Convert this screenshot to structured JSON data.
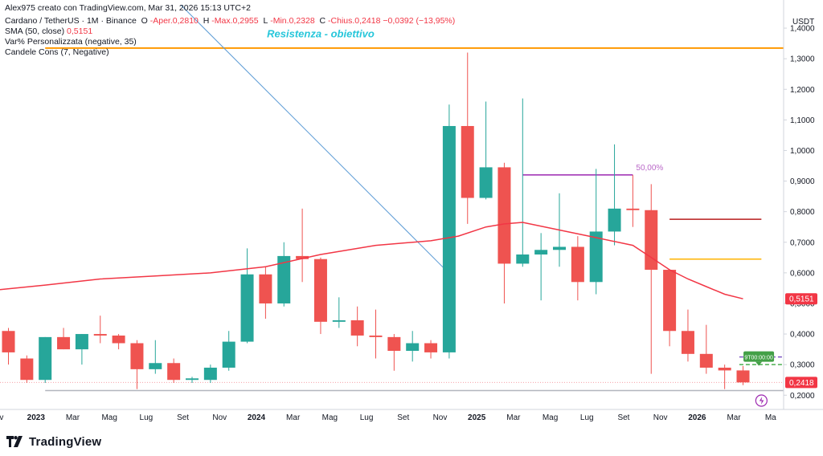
{
  "header": {
    "created_by": "Alex975 creato con TradingView.com, Mar 31, 2026 15:13 UTC+2",
    "symbol": "Cardano / TetherUS · 1M · Binance",
    "ohlc": {
      "o_label": "O",
      "o": "-Aper.0,2810",
      "h_label": "H",
      "h": "-Max.0,2955",
      "l_label": "L",
      "l": "-Min.0,2328",
      "c_label": "C",
      "c": "-Chius.0,2418",
      "change": "−0,0392 (−13,95%)"
    },
    "indicators": [
      {
        "name": "SMA (50, close)",
        "value": "0,5151"
      },
      {
        "name": "Var% Personalizzata (negative, 35)",
        "value": ""
      },
      {
        "name": "Candele Cons (7, Negative)",
        "value": ""
      }
    ]
  },
  "footer": {
    "brand": "TradingView",
    "logo_icon": "tradingview-logo-icon"
  },
  "chart_data": {
    "type": "candlestick",
    "currency": "USDT",
    "ylim": [
      0.16,
      1.45
    ],
    "y_ticks": [
      {
        "v": 0.2,
        "label": "0,2000"
      },
      {
        "v": 0.3,
        "label": "0,3000"
      },
      {
        "v": 0.4,
        "label": "0,4000"
      },
      {
        "v": 0.5,
        "label": "0,5000"
      },
      {
        "v": 0.6,
        "label": "0,6000"
      },
      {
        "v": 0.7,
        "label": "0,7000"
      },
      {
        "v": 0.8,
        "label": "0,8000"
      },
      {
        "v": 0.9,
        "label": "0,9000"
      },
      {
        "v": 1.0,
        "label": "1,0000"
      },
      {
        "v": 1.1,
        "label": "1,1000"
      },
      {
        "v": 1.2,
        "label": "1,2000"
      },
      {
        "v": 1.3,
        "label": "1,3000"
      },
      {
        "v": 1.4,
        "label": "1,4000"
      }
    ],
    "x_ticks": [
      {
        "i": -0.5,
        "label": "ov",
        "bold": false
      },
      {
        "i": 1.5,
        "label": "2023",
        "bold": true
      },
      {
        "i": 3.5,
        "label": "Mar",
        "bold": false
      },
      {
        "i": 5.5,
        "label": "Mag",
        "bold": false
      },
      {
        "i": 7.5,
        "label": "Lug",
        "bold": false
      },
      {
        "i": 9.5,
        "label": "Set",
        "bold": false
      },
      {
        "i": 11.5,
        "label": "Nov",
        "bold": false
      },
      {
        "i": 13.5,
        "label": "2024",
        "bold": true
      },
      {
        "i": 15.5,
        "label": "Mar",
        "bold": false
      },
      {
        "i": 17.5,
        "label": "Mag",
        "bold": false
      },
      {
        "i": 19.5,
        "label": "Lug",
        "bold": false
      },
      {
        "i": 21.5,
        "label": "Set",
        "bold": false
      },
      {
        "i": 23.5,
        "label": "Nov",
        "bold": false
      },
      {
        "i": 25.5,
        "label": "2025",
        "bold": true
      },
      {
        "i": 27.5,
        "label": "Mar",
        "bold": false
      },
      {
        "i": 29.5,
        "label": "Mag",
        "bold": false
      },
      {
        "i": 31.5,
        "label": "Lug",
        "bold": false
      },
      {
        "i": 33.5,
        "label": "Set",
        "bold": false
      },
      {
        "i": 35.5,
        "label": "Nov",
        "bold": false
      },
      {
        "i": 37.5,
        "label": "2026",
        "bold": true
      },
      {
        "i": 39.5,
        "label": "Mar",
        "bold": false
      },
      {
        "i": 41.5,
        "label": "Ma",
        "bold": false
      }
    ],
    "candles": [
      {
        "date": "2022-11",
        "o": 0.41,
        "h": 0.42,
        "l": 0.3,
        "c": 0.34
      },
      {
        "date": "2022-12",
        "o": 0.32,
        "h": 0.33,
        "l": 0.24,
        "c": 0.25
      },
      {
        "date": "2023-01",
        "o": 0.25,
        "h": 0.39,
        "l": 0.24,
        "c": 0.39
      },
      {
        "date": "2023-02",
        "o": 0.39,
        "h": 0.42,
        "l": 0.35,
        "c": 0.35
      },
      {
        "date": "2023-03",
        "o": 0.35,
        "h": 0.4,
        "l": 0.3,
        "c": 0.4
      },
      {
        "date": "2023-04",
        "o": 0.4,
        "h": 0.46,
        "l": 0.37,
        "c": 0.395
      },
      {
        "date": "2023-05",
        "o": 0.395,
        "h": 0.4,
        "l": 0.35,
        "c": 0.37
      },
      {
        "date": "2023-06",
        "o": 0.37,
        "h": 0.38,
        "l": 0.22,
        "c": 0.285
      },
      {
        "date": "2023-07",
        "o": 0.285,
        "h": 0.38,
        "l": 0.27,
        "c": 0.305
      },
      {
        "date": "2023-08",
        "o": 0.305,
        "h": 0.32,
        "l": 0.24,
        "c": 0.25
      },
      {
        "date": "2023-09",
        "o": 0.25,
        "h": 0.26,
        "l": 0.24,
        "c": 0.255
      },
      {
        "date": "2023-10",
        "o": 0.25,
        "h": 0.3,
        "l": 0.24,
        "c": 0.29
      },
      {
        "date": "2023-11",
        "o": 0.29,
        "h": 0.41,
        "l": 0.28,
        "c": 0.375
      },
      {
        "date": "2023-12",
        "o": 0.375,
        "h": 0.68,
        "l": 0.37,
        "c": 0.595
      },
      {
        "date": "2024-01",
        "o": 0.595,
        "h": 0.62,
        "l": 0.45,
        "c": 0.5
      },
      {
        "date": "2024-02",
        "o": 0.5,
        "h": 0.7,
        "l": 0.49,
        "c": 0.655
      },
      {
        "date": "2024-03",
        "o": 0.655,
        "h": 0.81,
        "l": 0.57,
        "c": 0.645
      },
      {
        "date": "2024-04",
        "o": 0.645,
        "h": 0.65,
        "l": 0.4,
        "c": 0.44
      },
      {
        "date": "2024-05",
        "o": 0.44,
        "h": 0.52,
        "l": 0.42,
        "c": 0.445
      },
      {
        "date": "2024-06",
        "o": 0.445,
        "h": 0.49,
        "l": 0.36,
        "c": 0.395
      },
      {
        "date": "2024-07",
        "o": 0.395,
        "h": 0.48,
        "l": 0.32,
        "c": 0.39
      },
      {
        "date": "2024-08",
        "o": 0.39,
        "h": 0.4,
        "l": 0.28,
        "c": 0.345
      },
      {
        "date": "2024-09",
        "o": 0.345,
        "h": 0.41,
        "l": 0.31,
        "c": 0.37
      },
      {
        "date": "2024-10",
        "o": 0.37,
        "h": 0.38,
        "l": 0.32,
        "c": 0.34
      },
      {
        "date": "2024-11",
        "o": 0.34,
        "h": 1.15,
        "l": 0.32,
        "c": 1.08
      },
      {
        "date": "2024-12",
        "o": 1.08,
        "h": 1.32,
        "l": 0.76,
        "c": 0.845
      },
      {
        "date": "2025-01",
        "o": 0.845,
        "h": 1.16,
        "l": 0.84,
        "c": 0.945
      },
      {
        "date": "2025-02",
        "o": 0.945,
        "h": 0.96,
        "l": 0.5,
        "c": 0.63
      },
      {
        "date": "2025-03",
        "o": 0.63,
        "h": 1.17,
        "l": 0.62,
        "c": 0.66
      },
      {
        "date": "2025-04",
        "o": 0.66,
        "h": 0.73,
        "l": 0.51,
        "c": 0.675
      },
      {
        "date": "2025-05",
        "o": 0.675,
        "h": 0.86,
        "l": 0.62,
        "c": 0.685
      },
      {
        "date": "2025-06",
        "o": 0.685,
        "h": 0.72,
        "l": 0.51,
        "c": 0.57
      },
      {
        "date": "2025-07",
        "o": 0.57,
        "h": 0.94,
        "l": 0.53,
        "c": 0.735
      },
      {
        "date": "2025-08",
        "o": 0.735,
        "h": 1.02,
        "l": 0.69,
        "c": 0.81
      },
      {
        "date": "2025-09",
        "o": 0.81,
        "h": 0.92,
        "l": 0.75,
        "c": 0.805
      },
      {
        "date": "2025-10",
        "o": 0.805,
        "h": 0.89,
        "l": 0.27,
        "c": 0.61
      },
      {
        "date": "2025-11",
        "o": 0.61,
        "h": 0.61,
        "l": 0.36,
        "c": 0.41
      },
      {
        "date": "2025-12",
        "o": 0.41,
        "h": 0.48,
        "l": 0.31,
        "c": 0.335
      },
      {
        "date": "2026-01",
        "o": 0.335,
        "h": 0.43,
        "l": 0.27,
        "c": 0.29
      },
      {
        "date": "2026-02",
        "o": 0.29,
        "h": 0.3,
        "l": 0.22,
        "c": 0.281
      },
      {
        "date": "2026-03",
        "o": 0.281,
        "h": 0.2955,
        "l": 0.2328,
        "c": 0.2418
      }
    ],
    "sma": {
      "name": "SMA (50, close)",
      "color": "#f23645",
      "points": [
        {
          "i": -1,
          "v": 0.545
        },
        {
          "i": 2,
          "v": 0.56
        },
        {
          "i": 5,
          "v": 0.58
        },
        {
          "i": 8,
          "v": 0.59
        },
        {
          "i": 11,
          "v": 0.6
        },
        {
          "i": 14,
          "v": 0.62
        },
        {
          "i": 17,
          "v": 0.66
        },
        {
          "i": 20,
          "v": 0.69
        },
        {
          "i": 23,
          "v": 0.705
        },
        {
          "i": 24.5,
          "v": 0.72
        },
        {
          "i": 26,
          "v": 0.75
        },
        {
          "i": 27,
          "v": 0.76
        },
        {
          "i": 28,
          "v": 0.765
        },
        {
          "i": 30,
          "v": 0.74
        },
        {
          "i": 32,
          "v": 0.715
        },
        {
          "i": 34,
          "v": 0.69
        },
        {
          "i": 35,
          "v": 0.65
        },
        {
          "i": 36,
          "v": 0.61
        },
        {
          "i": 37,
          "v": 0.58
        },
        {
          "i": 38,
          "v": 0.555
        },
        {
          "i": 39,
          "v": 0.53
        },
        {
          "i": 40,
          "v": 0.5151
        }
      ]
    },
    "horizontal_lines": [
      {
        "name": "resistance",
        "v": 1.335,
        "i_from": 2.0,
        "i_to": 43,
        "color": "#ff9800"
      },
      {
        "name": "support",
        "v": 0.215,
        "i_from": 2.0,
        "i_to": 43,
        "color": "#b2b5be"
      },
      {
        "name": "level-0-775",
        "v": 0.775,
        "i_from": 36,
        "i_to": 41,
        "color": "#b71c1c"
      },
      {
        "name": "level-0-645",
        "v": 0.645,
        "i_from": 36,
        "i_to": 41,
        "color": "#ffb300"
      },
      {
        "name": "last-price-line",
        "v": 0.2418,
        "i_from": -1,
        "i_to": 43,
        "color": "#f7a1a8",
        "dashed": true
      }
    ],
    "dashed_lines": [
      {
        "name": "dashed-0-325",
        "v": 0.325,
        "i_from": 39.8,
        "i_to": 42.5,
        "color": "#7e57c2"
      },
      {
        "name": "dashed-0-300",
        "v": 0.3,
        "i_from": 39.8,
        "i_to": 42.5,
        "color": "#4caf50"
      }
    ],
    "fib_line": {
      "v": 0.92,
      "i_from": 28,
      "i_to": 34,
      "color": "#9c27b0",
      "label": "50,00%"
    },
    "trend_line": {
      "i1": 9.4,
      "v1": 1.475,
      "i2": 23.8,
      "v2": 0.61,
      "color": "#5b9bd5"
    },
    "annotations": {
      "resistance_text": {
        "text": "Resistenza - obiettivo",
        "i": 17.0,
        "v": 1.37,
        "color": "#26c6da"
      },
      "green_label": {
        "text": "9T00:00:00",
        "i": 40.2,
        "v": 0.325
      }
    },
    "price_tags": [
      {
        "v": 0.5151,
        "label": "0,5151",
        "color": "#f23645"
      },
      {
        "v": 0.2418,
        "label": "0,2418",
        "color": "#f23645"
      }
    ],
    "event_marker": {
      "i": 40,
      "v": 0.155,
      "icon": "lightning-icon"
    }
  },
  "colors": {
    "up": "#26a69a",
    "down": "#ef5350",
    "axis_text": "#131722",
    "axis_line": "#d1d4dc"
  }
}
